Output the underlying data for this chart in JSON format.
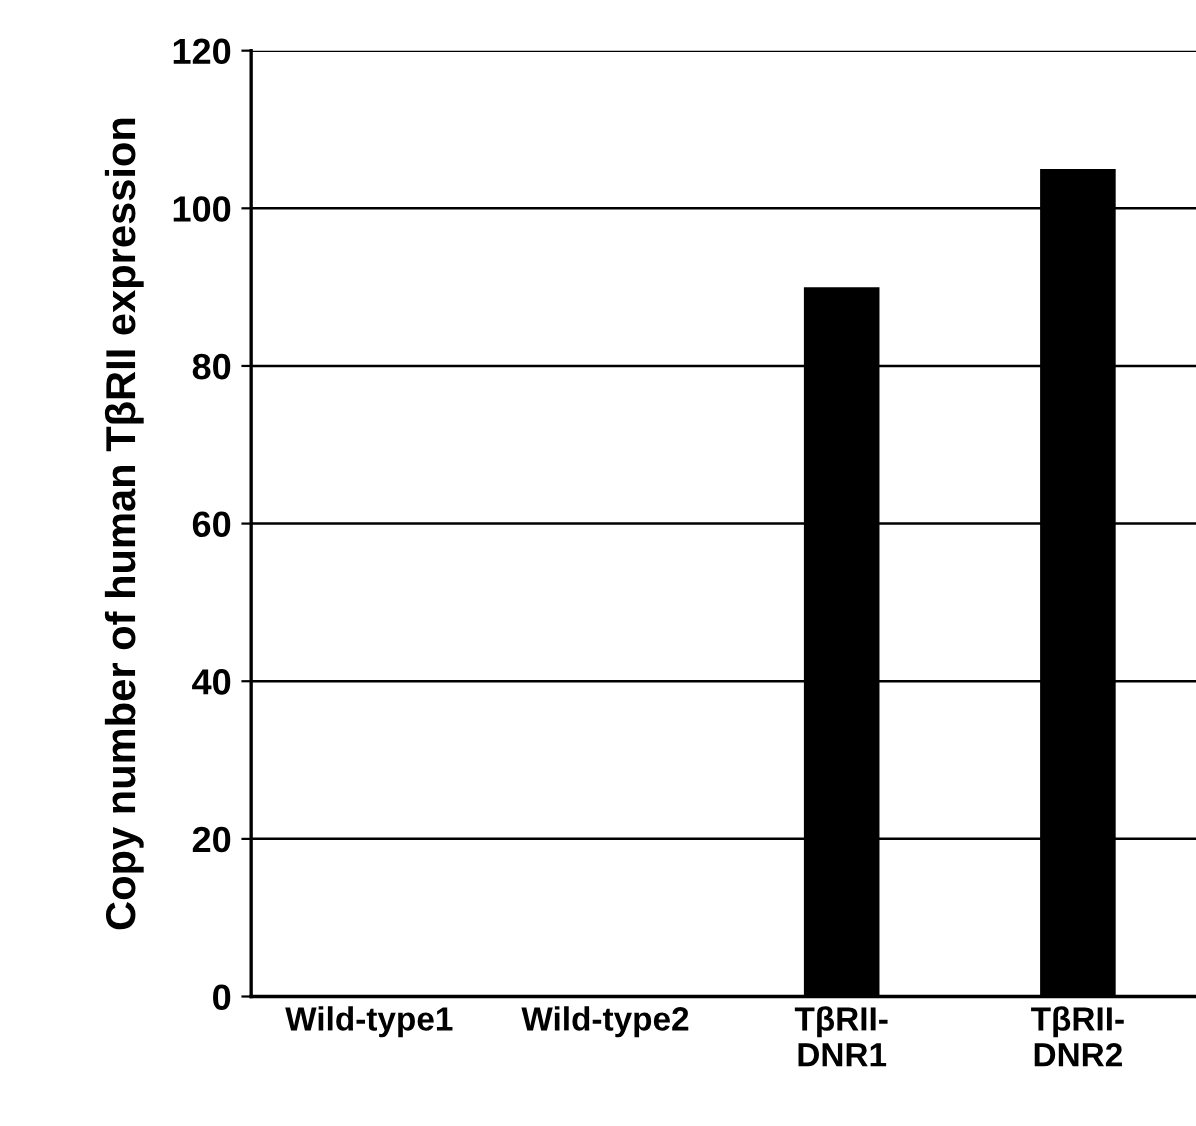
{
  "chart_data": {
    "type": "bar",
    "ylabel": "Copy number of human TβRII expression",
    "categories": [
      "Wild-type1",
      "Wild-type2",
      "TβRII-\nDNR1",
      "TβRII-\nDNR2"
    ],
    "values": [
      0,
      0,
      90,
      105
    ],
    "color": "#000000",
    "ylim": [
      0,
      120
    ],
    "yticks": [
      0,
      20,
      40,
      60,
      80,
      100,
      120
    ],
    "grid": "y"
  }
}
